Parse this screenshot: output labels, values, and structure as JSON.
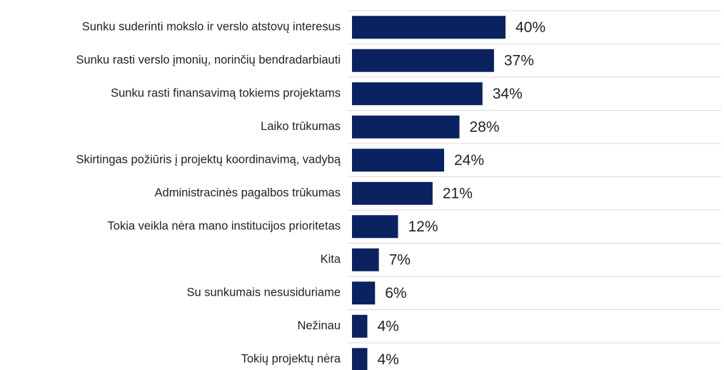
{
  "chart_data": {
    "type": "bar",
    "orientation": "horizontal",
    "categories": [
      "Sunku suderinti mokslo ir verslo atstovų interesus",
      "Sunku rasti verslo įmonių, norinčių bendradarbiauti",
      "Sunku rasti finansavimą tokiems projektams",
      "Laiko trūkumas",
      "Skirtingas požiūris į projektų koordinavimą, vadybą",
      "Administracinės pagalbos trūkumas",
      "Tokia veikla nėra mano institucijos prioritetas",
      "Kita",
      "Su sunkumais nesusiduriame",
      "Nežinau",
      "Tokių projektų nėra"
    ],
    "values": [
      40,
      37,
      34,
      28,
      24,
      21,
      12,
      7,
      6,
      4,
      4
    ],
    "value_labels": [
      "40%",
      "37%",
      "34%",
      "28%",
      "24%",
      "21%",
      "12%",
      "7%",
      "6%",
      "4%",
      "4%"
    ],
    "color": "#0b2260"
  }
}
